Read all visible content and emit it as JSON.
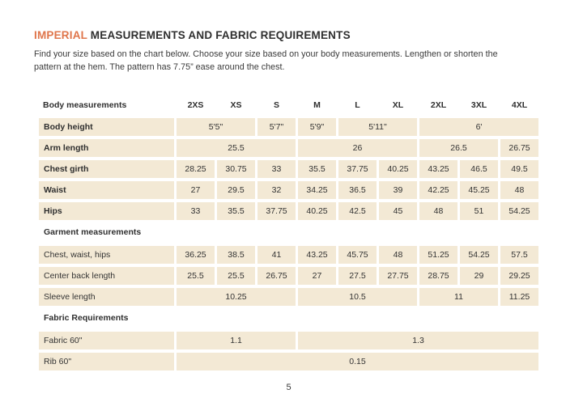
{
  "header": {
    "title_highlight": "IMPERIAL",
    "title_rest": " MEASUREMENTS AND FABRIC REQUIREMENTS",
    "description_line1": "Find your size based on the chart below. Choose your size based on your body measurements. Lengthen or shorten the",
    "description_line2": "pattern at the hem. The pattern has 7.75” ease around the chest."
  },
  "colors": {
    "accent_orange": "#df754a",
    "cell_beige": "#f3e9d5",
    "text_dark": "#333333"
  },
  "table": {
    "corner_label": "Body measurements",
    "size_columns": [
      "2XS",
      "XS",
      "S",
      "M",
      "L",
      "XL",
      "2XL",
      "3XL",
      "4XL"
    ],
    "sections": [
      {
        "name": "body-measurements",
        "header": null,
        "rows": [
          {
            "label": "Body height",
            "bold": true,
            "cells": [
              {
                "value": "5'5\"",
                "span": 2
              },
              {
                "value": "5'7\"",
                "span": 1
              },
              {
                "value": "5'9\"",
                "span": 1
              },
              {
                "value": "5'11\"",
                "span": 2
              },
              {
                "value": "6'",
                "span": 3
              }
            ]
          },
          {
            "label": "Arm length",
            "bold": true,
            "cells": [
              {
                "value": "25.5",
                "span": 3
              },
              {
                "value": "26",
                "span": 3
              },
              {
                "value": "26.5",
                "span": 2
              },
              {
                "value": "26.75",
                "span": 1
              }
            ]
          },
          {
            "label": "Chest girth",
            "bold": true,
            "cells": [
              {
                "value": "28.25",
                "span": 1
              },
              {
                "value": "30.75",
                "span": 1
              },
              {
                "value": "33",
                "span": 1
              },
              {
                "value": "35.5",
                "span": 1
              },
              {
                "value": "37.75",
                "span": 1
              },
              {
                "value": "40.25",
                "span": 1
              },
              {
                "value": "43.25",
                "span": 1
              },
              {
                "value": "46.5",
                "span": 1
              },
              {
                "value": "49.5",
                "span": 1
              }
            ]
          },
          {
            "label": "Waist",
            "bold": true,
            "cells": [
              {
                "value": "27",
                "span": 1
              },
              {
                "value": "29.5",
                "span": 1
              },
              {
                "value": "32",
                "span": 1
              },
              {
                "value": "34.25",
                "span": 1
              },
              {
                "value": "36.5",
                "span": 1
              },
              {
                "value": "39",
                "span": 1
              },
              {
                "value": "42.25",
                "span": 1
              },
              {
                "value": "45.25",
                "span": 1
              },
              {
                "value": "48",
                "span": 1
              }
            ]
          },
          {
            "label": "Hips",
            "bold": true,
            "cells": [
              {
                "value": "33",
                "span": 1
              },
              {
                "value": "35.5",
                "span": 1
              },
              {
                "value": "37.75",
                "span": 1
              },
              {
                "value": "40.25",
                "span": 1
              },
              {
                "value": "42.5",
                "span": 1
              },
              {
                "value": "45",
                "span": 1
              },
              {
                "value": "48",
                "span": 1
              },
              {
                "value": "51",
                "span": 1
              },
              {
                "value": "54.25",
                "span": 1
              }
            ]
          }
        ]
      },
      {
        "name": "garment-measurements",
        "header": "Garment measurements",
        "rows": [
          {
            "label": "Chest, waist, hips",
            "bold": false,
            "cells": [
              {
                "value": "36.25",
                "span": 1
              },
              {
                "value": "38.5",
                "span": 1
              },
              {
                "value": "41",
                "span": 1
              },
              {
                "value": "43.25",
                "span": 1
              },
              {
                "value": "45.75",
                "span": 1
              },
              {
                "value": "48",
                "span": 1
              },
              {
                "value": "51.25",
                "span": 1
              },
              {
                "value": "54.25",
                "span": 1
              },
              {
                "value": "57.5",
                "span": 1
              }
            ]
          },
          {
            "label": "Center back length",
            "bold": false,
            "cells": [
              {
                "value": "25.5",
                "span": 1
              },
              {
                "value": "25.5",
                "span": 1
              },
              {
                "value": "26.75",
                "span": 1
              },
              {
                "value": "27",
                "span": 1
              },
              {
                "value": "27.5",
                "span": 1
              },
              {
                "value": "27.75",
                "span": 1
              },
              {
                "value": "28.75",
                "span": 1
              },
              {
                "value": "29",
                "span": 1
              },
              {
                "value": "29.25",
                "span": 1
              }
            ]
          },
          {
            "label": "Sleeve length",
            "bold": false,
            "cells": [
              {
                "value": "10.25",
                "span": 3
              },
              {
                "value": "10.5",
                "span": 3
              },
              {
                "value": "11",
                "span": 2
              },
              {
                "value": "11.25",
                "span": 1
              }
            ]
          }
        ]
      },
      {
        "name": "fabric-requirements",
        "header": "Fabric Requirements",
        "rows": [
          {
            "label": "Fabric 60\"",
            "bold": false,
            "cells": [
              {
                "value": "1.1",
                "span": 3
              },
              {
                "value": "1.3",
                "span": 6
              }
            ]
          },
          {
            "label": "Rib 60\"",
            "bold": false,
            "cells": [
              {
                "value": "0.15",
                "span": 9
              }
            ]
          }
        ]
      }
    ]
  },
  "footer": {
    "page_number": "5"
  }
}
